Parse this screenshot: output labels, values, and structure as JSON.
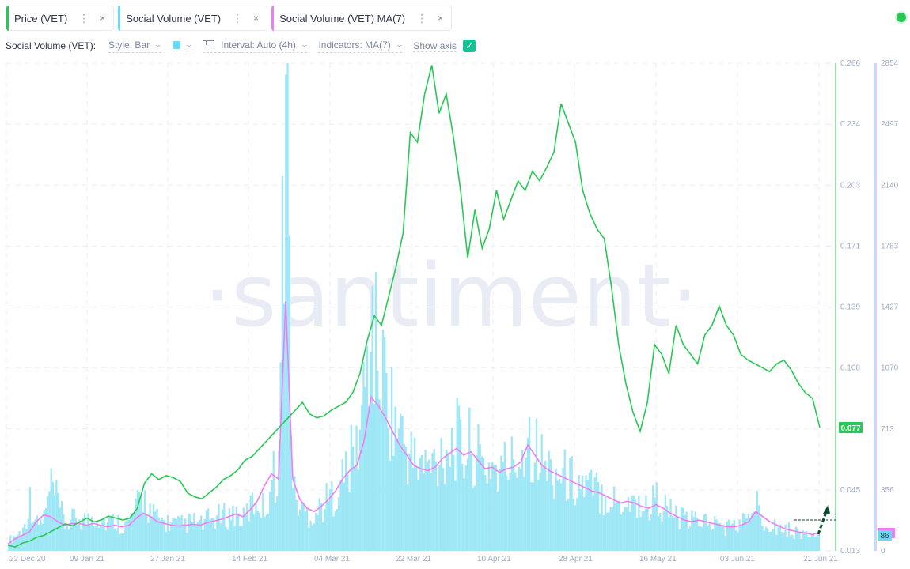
{
  "tabs": [
    {
      "label": "Price (VET)",
      "accent": "#26c953"
    },
    {
      "label": "Social Volume (VET)",
      "accent": "#68dbf4"
    },
    {
      "label": "Social Volume (VET) MA(7)",
      "accent": "#f47bf7"
    }
  ],
  "tab_menu_icon": "⋮",
  "tab_close_icon": "×",
  "settings": {
    "title": "Social Volume (VET):",
    "style": "Style: Bar",
    "color_swatch": "#68dbf4",
    "interval": "Interval: Auto (4h)",
    "indicators": "Indicators: MA(7)",
    "show_axis": "Show axis",
    "show_axis_checked": true,
    "chevron": "⌄",
    "check": "✓"
  },
  "watermark": "·santiment·",
  "colors": {
    "price": "#26c953",
    "volume": "#68dbf4",
    "ma": "#f47bf7",
    "grid": "#e7eaf3",
    "axis_text": "#9faac4",
    "status": "#26c953"
  },
  "chart_data": {
    "type": "line+bar",
    "title": "",
    "x_ticks": [
      "22 Dec 20",
      "09 Jan 21",
      "27 Jan 21",
      "14 Feb 21",
      "04 Mar 21",
      "22 Mar 21",
      "10 Apr 21",
      "28 Apr 21",
      "16 May 21",
      "03 Jun 21",
      "21 Jun 21"
    ],
    "price_axis": {
      "ticks": [
        "0.266",
        "0.234",
        "0.203",
        "0.171",
        "0.139",
        "0.108",
        "0.077",
        "0.045",
        "0.013"
      ],
      "range": [
        0.013,
        0.266
      ],
      "current": "0.077"
    },
    "volume_axis": {
      "ticks": [
        "2854",
        "2497",
        "2140",
        "1783",
        "1427",
        "1070",
        "713",
        "356",
        "0"
      ],
      "range": [
        0,
        2854
      ],
      "current": "86"
    },
    "series": [
      {
        "name": "Price (VET)",
        "type": "line",
        "color": "#26c953",
        "values": [
          0.016,
          0.015,
          0.017,
          0.018,
          0.02,
          0.021,
          0.023,
          0.025,
          0.027,
          0.026,
          0.028,
          0.03,
          0.028,
          0.029,
          0.031,
          0.03,
          0.029,
          0.03,
          0.035,
          0.048,
          0.053,
          0.05,
          0.052,
          0.051,
          0.049,
          0.043,
          0.041,
          0.04,
          0.043,
          0.046,
          0.05,
          0.052,
          0.055,
          0.06,
          0.062,
          0.066,
          0.07,
          0.074,
          0.078,
          0.082,
          0.086,
          0.09,
          0.084,
          0.082,
          0.083,
          0.086,
          0.088,
          0.09,
          0.095,
          0.105,
          0.122,
          0.135,
          0.13,
          0.145,
          0.16,
          0.178,
          0.23,
          0.225,
          0.25,
          0.265,
          0.24,
          0.25,
          0.228,
          0.2,
          0.165,
          0.19,
          0.17,
          0.18,
          0.2,
          0.185,
          0.195,
          0.205,
          0.2,
          0.21,
          0.205,
          0.212,
          0.22,
          0.245,
          0.235,
          0.225,
          0.2,
          0.188,
          0.18,
          0.175,
          0.15,
          0.12,
          0.1,
          0.085,
          0.075,
          0.09,
          0.12,
          0.115,
          0.105,
          0.13,
          0.12,
          0.115,
          0.11,
          0.125,
          0.13,
          0.14,
          0.13,
          0.125,
          0.115,
          0.112,
          0.11,
          0.108,
          0.106,
          0.11,
          0.112,
          0.107,
          0.1,
          0.095,
          0.092,
          0.077
        ]
      },
      {
        "name": "Social Volume (VET)",
        "type": "bar",
        "color": "#68dbf4",
        "values": [
          60,
          90,
          120,
          300,
          150,
          200,
          380,
          260,
          150,
          180,
          200,
          170,
          210,
          190,
          160,
          180,
          150,
          170,
          250,
          320,
          220,
          180,
          170,
          160,
          150,
          160,
          170,
          150,
          180,
          190,
          200,
          210,
          220,
          180,
          260,
          300,
          240,
          420,
          500,
          2854,
          350,
          250,
          220,
          210,
          260,
          300,
          350,
          420,
          520,
          600,
          900,
          1350,
          1100,
          1000,
          800,
          700,
          600,
          520,
          500,
          480,
          520,
          600,
          620,
          650,
          560,
          620,
          540,
          480,
          520,
          450,
          500,
          520,
          560,
          700,
          620,
          520,
          480,
          460,
          440,
          420,
          400,
          380,
          360,
          350,
          330,
          300,
          280,
          300,
          290,
          260,
          250,
          320,
          260,
          230,
          200,
          180,
          170,
          190,
          175,
          160,
          150,
          140,
          145,
          160,
          190,
          280,
          200,
          170,
          150,
          130,
          120,
          110,
          100,
          90,
          86
        ]
      },
      {
        "name": "Social Volume (VET) MA(7)",
        "type": "line",
        "color": "#f47bf7",
        "values": [
          40,
          70,
          90,
          110,
          170,
          210,
          200,
          170,
          150,
          160,
          160,
          150,
          160,
          150,
          140,
          150,
          140,
          150,
          190,
          220,
          200,
          170,
          160,
          150,
          145,
          150,
          155,
          150,
          165,
          175,
          185,
          200,
          215,
          200,
          240,
          290,
          380,
          450,
          420,
          1460,
          420,
          300,
          250,
          230,
          260,
          300,
          350,
          420,
          470,
          500,
          640,
          900,
          850,
          780,
          700,
          620,
          560,
          500,
          480,
          470,
          490,
          540,
          570,
          600,
          560,
          580,
          530,
          480,
          490,
          460,
          480,
          490,
          520,
          620,
          560,
          500,
          470,
          450,
          430,
          410,
          390,
          370,
          350,
          340,
          320,
          300,
          280,
          290,
          280,
          260,
          250,
          270,
          250,
          220,
          200,
          180,
          170,
          180,
          170,
          160,
          150,
          140,
          140,
          150,
          170,
          230,
          200,
          170,
          150,
          130,
          120,
          110,
          105,
          95,
          110
        ]
      }
    ],
    "annotations": [
      "dashed horizontal line at recent social volume peak",
      "dashed green arrow pointing up at end of social volume series"
    ],
    "grid": true
  }
}
